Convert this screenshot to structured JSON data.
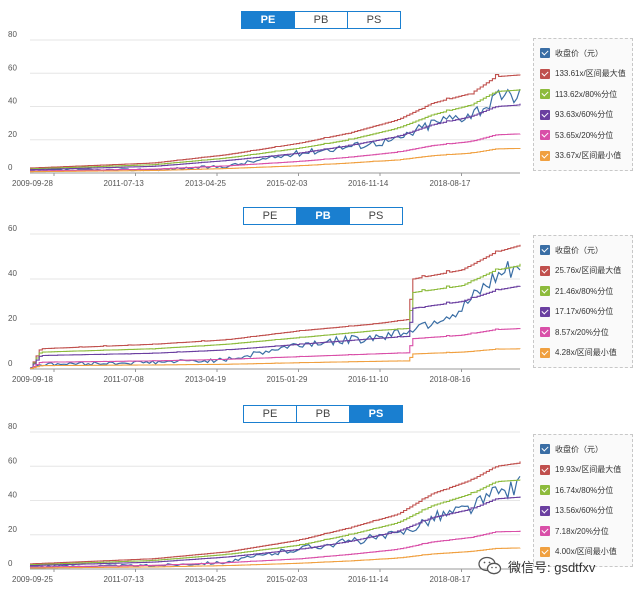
{
  "tabs": [
    "PE",
    "PB",
    "PS"
  ],
  "chart_data": [
    {
      "type": "line",
      "active_tab": 0,
      "ylim": [
        0,
        80
      ],
      "yticks": [
        "0",
        "20",
        "40",
        "60",
        "80"
      ],
      "xticks": [
        "2009-09-28",
        "2011-07-13",
        "2013-04-25",
        "2015-02-03",
        "2016-11-14",
        "2018-08-17"
      ],
      "grid": true,
      "legend": "right",
      "x": [
        0,
        0.25,
        0.4,
        0.55,
        0.65,
        0.75,
        0.82,
        0.9,
        0.95,
        1.0
      ],
      "series": [
        {
          "name": "收盘价（元）",
          "color": "#3a6ea5",
          "values": [
            1.5,
            2,
            4,
            12,
            16,
            20,
            30,
            36,
            44,
            48
          ]
        },
        {
          "name": "133.61x/区间最大值",
          "color": "#c0504d",
          "values": [
            3,
            6,
            11,
            18,
            24,
            32,
            42,
            48,
            58,
            59
          ]
        },
        {
          "name": "113.62x/80%分位",
          "color": "#8dbb3c",
          "values": [
            2.5,
            5,
            9,
            15,
            20,
            27,
            35,
            41,
            49,
            50
          ]
        },
        {
          "name": "93.63x/60%分位",
          "color": "#6a3fa0",
          "values": [
            2,
            4,
            7.5,
            12,
            16.5,
            22,
            29,
            34,
            40,
            41
          ]
        },
        {
          "name": "53.65x/20%分位",
          "color": "#d94fa8",
          "values": [
            1.2,
            2.3,
            4.3,
            7,
            9.5,
            12.6,
            16.5,
            19,
            23,
            23.5
          ]
        },
        {
          "name": "33.67x/区间最小值",
          "color": "#f0a040",
          "values": [
            0.8,
            1.5,
            2.7,
            4.4,
            6,
            7.9,
            10.4,
            12,
            14.5,
            14.8
          ]
        }
      ]
    },
    {
      "type": "line",
      "active_tab": 1,
      "ylim": [
        0,
        60
      ],
      "yticks": [
        "0",
        "20",
        "40",
        "60"
      ],
      "xticks": [
        "2009-09-18",
        "2011-07-08",
        "2013-04-19",
        "2015-01-29",
        "2016-11-10",
        "2018-08-16"
      ],
      "grid": true,
      "legend": "right",
      "x": [
        0,
        0.02,
        0.25,
        0.4,
        0.55,
        0.7,
        0.77,
        0.78,
        0.88,
        0.95,
        1.0
      ],
      "series": [
        {
          "name": "收盘价（元）",
          "color": "#3a6ea5",
          "values": [
            0.5,
            2,
            3,
            4,
            11,
            14,
            17,
            18,
            26,
            40,
            46
          ]
        },
        {
          "name": "25.76x/区间最大值",
          "color": "#c0504d",
          "values": [
            0.5,
            9,
            11,
            13,
            17,
            20,
            22,
            40,
            44,
            52,
            55
          ]
        },
        {
          "name": "21.46x/80%分位",
          "color": "#8dbb3c",
          "values": [
            0.5,
            7.5,
            9,
            11,
            14,
            17,
            18,
            34,
            37,
            44,
            46
          ]
        },
        {
          "name": "17.17x/60%分位",
          "color": "#6a3fa0",
          "values": [
            0.5,
            6,
            7,
            8.5,
            11,
            13.5,
            14.5,
            27,
            30,
            35,
            37
          ]
        },
        {
          "name": "8.57x/20%分位",
          "color": "#d94fa8",
          "values": [
            0.3,
            3,
            3.6,
            4.3,
            5.5,
            6.7,
            7.2,
            13.5,
            15,
            17.5,
            18
          ]
        },
        {
          "name": "4.28x/区间最小值",
          "color": "#f0a040",
          "values": [
            0.2,
            1.5,
            1.8,
            2.1,
            2.8,
            3.4,
            3.6,
            6.7,
            7.5,
            8.8,
            9
          ]
        }
      ]
    },
    {
      "type": "line",
      "active_tab": 2,
      "ylim": [
        0,
        80
      ],
      "yticks": [
        "0",
        "20",
        "40",
        "60",
        "80"
      ],
      "xticks": [
        "2009-09-25",
        "2011-07-13",
        "2013-04-25",
        "2015-02-03",
        "2016-11-14",
        "2018-08-17"
      ],
      "grid": true,
      "legend": "right",
      "x": [
        0,
        0.25,
        0.4,
        0.55,
        0.65,
        0.75,
        0.82,
        0.9,
        0.95,
        1.0
      ],
      "series": [
        {
          "name": "收盘价（元）",
          "color": "#3a6ea5",
          "values": [
            1.5,
            2,
            4,
            12,
            16,
            20,
            30,
            36,
            44,
            49
          ]
        },
        {
          "name": "19.93x/区间最大值",
          "color": "#c0504d",
          "values": [
            3,
            6,
            10,
            17,
            24,
            32,
            44,
            52,
            60,
            62
          ]
        },
        {
          "name": "16.74x/80%分位",
          "color": "#8dbb3c",
          "values": [
            2.5,
            5,
            8.5,
            14,
            20,
            27,
            37,
            44,
            51,
            52
          ]
        },
        {
          "name": "13.56x/60%分位",
          "color": "#6a3fa0",
          "values": [
            2,
            4,
            7,
            11.5,
            16,
            22,
            30,
            35,
            41,
            42
          ]
        },
        {
          "name": "7.18x/20%分位",
          "color": "#d94fa8",
          "values": [
            1.1,
            2.1,
            3.7,
            6,
            8.5,
            11.5,
            15.8,
            18.5,
            21.7,
            22
          ]
        },
        {
          "name": "4.00x/区间最小值",
          "color": "#f0a040",
          "values": [
            0.6,
            1.2,
            2,
            3.4,
            4.7,
            6.4,
            8.8,
            10.3,
            12,
            12.3
          ]
        }
      ]
    }
  ],
  "watermark": {
    "text": "微信号: gsdtfxv",
    "icon": "wechat-icon"
  }
}
